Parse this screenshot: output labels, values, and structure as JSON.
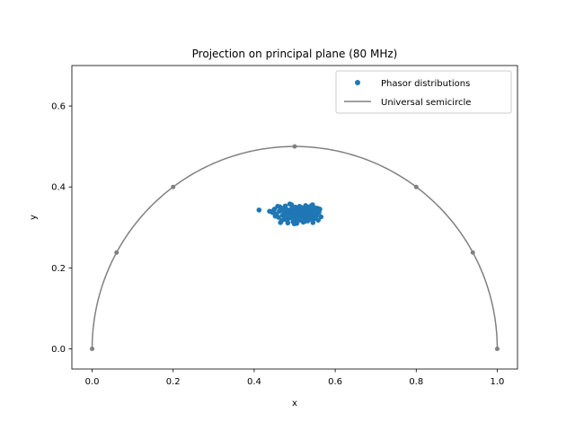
{
  "chart_data": {
    "type": "scatter",
    "title": "Projection on principal plane (80 MHz)",
    "xlabel": "x",
    "ylabel": "y",
    "xlim": [
      -0.05,
      1.05
    ],
    "ylim": [
      -0.05,
      0.7
    ],
    "x_ticks": [
      "0.0",
      "0.2",
      "0.4",
      "0.6",
      "0.8",
      "1.0"
    ],
    "y_ticks": [
      "0.0",
      "0.2",
      "0.4",
      "0.6"
    ],
    "grid": false,
    "legend_position": "top-right",
    "series": [
      {
        "name": "Phasor distributions",
        "kind": "scatter",
        "color": "#1f77b4",
        "points": [
          [
            0.412,
            0.343
          ],
          [
            0.438,
            0.34
          ],
          [
            0.445,
            0.337
          ],
          [
            0.45,
            0.345
          ],
          [
            0.455,
            0.333
          ],
          [
            0.458,
            0.352
          ],
          [
            0.46,
            0.325
          ],
          [
            0.462,
            0.34
          ],
          [
            0.465,
            0.312
          ],
          [
            0.467,
            0.348
          ],
          [
            0.47,
            0.33
          ],
          [
            0.472,
            0.341
          ],
          [
            0.474,
            0.32
          ],
          [
            0.476,
            0.336
          ],
          [
            0.478,
            0.345
          ],
          [
            0.48,
            0.328
          ],
          [
            0.482,
            0.318
          ],
          [
            0.484,
            0.343
          ],
          [
            0.486,
            0.335
          ],
          [
            0.488,
            0.358
          ],
          [
            0.49,
            0.324
          ],
          [
            0.491,
            0.34
          ],
          [
            0.493,
            0.347
          ],
          [
            0.494,
            0.33
          ],
          [
            0.496,
            0.314
          ],
          [
            0.497,
            0.338
          ],
          [
            0.498,
            0.326
          ],
          [
            0.5,
            0.344
          ],
          [
            0.501,
            0.332
          ],
          [
            0.502,
            0.35
          ],
          [
            0.503,
            0.32
          ],
          [
            0.504,
            0.338
          ],
          [
            0.505,
            0.31
          ],
          [
            0.506,
            0.345
          ],
          [
            0.507,
            0.33
          ],
          [
            0.508,
            0.322
          ],
          [
            0.509,
            0.341
          ],
          [
            0.51,
            0.335
          ],
          [
            0.512,
            0.352
          ],
          [
            0.513,
            0.318
          ],
          [
            0.514,
            0.343
          ],
          [
            0.515,
            0.328
          ],
          [
            0.516,
            0.339
          ],
          [
            0.518,
            0.346
          ],
          [
            0.519,
            0.325
          ],
          [
            0.52,
            0.334
          ],
          [
            0.521,
            0.313
          ],
          [
            0.522,
            0.348
          ],
          [
            0.523,
            0.33
          ],
          [
            0.524,
            0.341
          ],
          [
            0.526,
            0.322
          ],
          [
            0.527,
            0.354
          ],
          [
            0.528,
            0.336
          ],
          [
            0.53,
            0.344
          ],
          [
            0.531,
            0.327
          ],
          [
            0.532,
            0.316
          ],
          [
            0.533,
            0.339
          ],
          [
            0.535,
            0.35
          ],
          [
            0.536,
            0.331
          ],
          [
            0.537,
            0.343
          ],
          [
            0.538,
            0.324
          ],
          [
            0.54,
            0.337
          ],
          [
            0.541,
            0.346
          ],
          [
            0.542,
            0.32
          ],
          [
            0.543,
            0.333
          ],
          [
            0.544,
            0.356
          ],
          [
            0.546,
            0.341
          ],
          [
            0.547,
            0.328
          ],
          [
            0.548,
            0.345
          ],
          [
            0.549,
            0.335
          ],
          [
            0.55,
            0.322
          ],
          [
            0.552,
            0.348
          ],
          [
            0.553,
            0.34
          ],
          [
            0.554,
            0.33
          ],
          [
            0.556,
            0.343
          ],
          [
            0.558,
            0.318
          ],
          [
            0.56,
            0.337
          ],
          [
            0.562,
            0.345
          ],
          [
            0.565,
            0.326
          ],
          [
            0.452,
            0.328
          ],
          [
            0.463,
            0.351
          ],
          [
            0.468,
            0.317
          ],
          [
            0.477,
            0.353
          ],
          [
            0.483,
            0.311
          ],
          [
            0.492,
            0.356
          ],
          [
            0.499,
            0.309
          ],
          [
            0.511,
            0.326
          ],
          [
            0.517,
            0.349
          ],
          [
            0.525,
            0.315
          ],
          [
            0.534,
            0.322
          ],
          [
            0.539,
            0.352
          ],
          [
            0.545,
            0.312
          ],
          [
            0.551,
            0.339
          ],
          [
            0.557,
            0.347
          ],
          [
            0.448,
            0.342
          ]
        ]
      },
      {
        "name": "Universal semicircle",
        "kind": "line",
        "color": "#808080",
        "center": [
          0.5,
          0.0
        ],
        "radius": 0.5,
        "marker_points": [
          [
            0.0,
            0.0
          ],
          [
            0.0603,
            0.238
          ],
          [
            0.2,
            0.4
          ],
          [
            0.5,
            0.5
          ],
          [
            0.8,
            0.4
          ],
          [
            0.9397,
            0.238
          ],
          [
            1.0,
            0.0
          ]
        ]
      }
    ]
  }
}
